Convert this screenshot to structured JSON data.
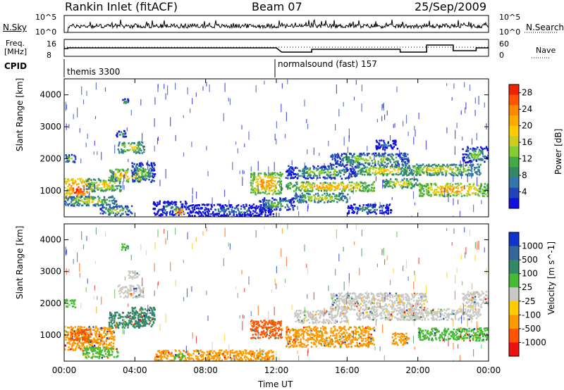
{
  "header": {
    "site": "Rankin Inlet (fitACF)",
    "beam": "Beam 07",
    "date": "25/Sep/2009"
  },
  "top_panels": {
    "nsky_label": "N.Sky",
    "nsky_ticks": [
      "10^5",
      "10^0"
    ],
    "nsearch_label": "N.Search",
    "nsearch_ticks": [
      "10^5",
      "10^0"
    ],
    "freq_label": "Freq.",
    "freq_unit": "[MHz]",
    "freq_ticks": [
      "16",
      "8"
    ],
    "nave_label": "Nave",
    "nave_ticks": [
      "60",
      "0"
    ],
    "cpid_label": "CPID",
    "cpid_segments": [
      {
        "name": "themis 3300",
        "start_hour": 0
      },
      {
        "name": "normalsound (fast) 157",
        "start_hour": 12
      }
    ]
  },
  "chart_data": [
    {
      "type": "heatmap",
      "title": "Power",
      "ylabel": "Slant Range [km]",
      "xlabel": "",
      "x_ticks": [
        "00:00",
        "04:00",
        "08:00",
        "12:00",
        "16:00",
        "20:00",
        "00:00"
      ],
      "x_range_hours": [
        0,
        24
      ],
      "y_ticks": [
        1000,
        2000,
        3000,
        4000
      ],
      "ylim": [
        180,
        4500
      ],
      "colorbar": {
        "label": "Power [dB]",
        "ticks": [
          4,
          8,
          12,
          16,
          20,
          24,
          28
        ],
        "range": [
          0,
          30
        ],
        "colors": [
          "#1111dd",
          "#2244bb",
          "#3377aa",
          "#338866",
          "#44aa44",
          "#88cc33",
          "#cccc22",
          "#ffcc00",
          "#ffaa00",
          "#ff8800",
          "#ff5500",
          "#ee2200"
        ]
      },
      "regions": [
        {
          "t": [
            0.0,
            1.5
          ],
          "r": [
            750,
            1400
          ],
          "level": 27
        },
        {
          "t": [
            0.0,
            3.0
          ],
          "r": [
            550,
            850
          ],
          "level": 16
        },
        {
          "t": [
            1.2,
            3.2
          ],
          "r": [
            1000,
            1400
          ],
          "level": 19
        },
        {
          "t": [
            2.0,
            3.8
          ],
          "r": [
            250,
            550
          ],
          "level": 14
        },
        {
          "t": [
            2.5,
            4.6
          ],
          "r": [
            1300,
            1700
          ],
          "level": 21
        },
        {
          "t": [
            3.0,
            4.5
          ],
          "r": [
            2200,
            2550
          ],
          "level": 17
        },
        {
          "t": [
            3.8,
            5.1
          ],
          "r": [
            1300,
            1900
          ],
          "level": 13
        },
        {
          "t": [
            0.0,
            0.6
          ],
          "r": [
            1900,
            2150
          ],
          "level": 14
        },
        {
          "t": [
            2.9,
            3.5
          ],
          "r": [
            2700,
            2900
          ],
          "level": 11
        },
        {
          "t": [
            3.2,
            3.6
          ],
          "r": [
            3700,
            3900
          ],
          "level": 10
        },
        {
          "t": [
            5.0,
            7.0
          ],
          "r": [
            250,
            700
          ],
          "level": 8
        },
        {
          "t": [
            6.2,
            6.8
          ],
          "r": [
            250,
            450
          ],
          "level": 26
        },
        {
          "t": [
            7.0,
            11.8
          ],
          "r": [
            200,
            600
          ],
          "level": 6
        },
        {
          "t": [
            10.5,
            12.3
          ],
          "r": [
            900,
            1600
          ],
          "level": 22
        },
        {
          "t": [
            11.0,
            13.0
          ],
          "r": [
            400,
            800
          ],
          "level": 12
        },
        {
          "t": [
            12.5,
            17.5
          ],
          "r": [
            1000,
            1300
          ],
          "level": 21
        },
        {
          "t": [
            13.0,
            16.0
          ],
          "r": [
            650,
            950
          ],
          "level": 16
        },
        {
          "t": [
            12.5,
            16.5
          ],
          "r": [
            1400,
            1800
          ],
          "level": 13
        },
        {
          "t": [
            15.0,
            19.5
          ],
          "r": [
            1800,
            2200
          ],
          "level": 14
        },
        {
          "t": [
            16.5,
            20.0
          ],
          "r": [
            1500,
            1800
          ],
          "level": 19
        },
        {
          "t": [
            19.0,
            23.5
          ],
          "r": [
            1500,
            1850
          ],
          "level": 17
        },
        {
          "t": [
            20.0,
            24.0
          ],
          "r": [
            850,
            1250
          ],
          "level": 22
        },
        {
          "t": [
            18.0,
            20.0
          ],
          "r": [
            1100,
            1400
          ],
          "level": 18
        },
        {
          "t": [
            16.0,
            18.5
          ],
          "r": [
            300,
            600
          ],
          "level": 9
        },
        {
          "t": [
            17.5,
            18.8
          ],
          "r": [
            2300,
            2600
          ],
          "level": 6
        },
        {
          "t": [
            22.5,
            24.0
          ],
          "r": [
            1900,
            2400
          ],
          "level": 12
        }
      ]
    },
    {
      "type": "heatmap",
      "title": "Velocity",
      "ylabel": "Slant Range [km]",
      "xlabel": "Time UT",
      "x_ticks": [
        "00:00",
        "04:00",
        "08:00",
        "12:00",
        "16:00",
        "20:00",
        "00:00"
      ],
      "x_range_hours": [
        0,
        24
      ],
      "y_ticks": [
        1000,
        2000,
        3000,
        4000
      ],
      "ylim": [
        180,
        4500
      ],
      "colorbar": {
        "label": "Velocity [m s^-1]",
        "ticks": [
          "1000",
          "500",
          "100",
          "25",
          "-25",
          "-100",
          "-500",
          "-1000"
        ],
        "colors": [
          "#1133cc",
          "#336699",
          "#338866",
          "#44bb33",
          "#c8c8c4",
          "#ffcc00",
          "#ff9900",
          "#ff5500",
          "#ee1111"
        ]
      },
      "regions": [
        {
          "t": [
            0.0,
            2.8
          ],
          "r": [
            550,
            1300
          ],
          "cat": "-100"
        },
        {
          "t": [
            0.3,
            1.5
          ],
          "r": [
            800,
            1200
          ],
          "cat": "-500"
        },
        {
          "t": [
            1.0,
            3.0
          ],
          "r": [
            300,
            650
          ],
          "cat": "100"
        },
        {
          "t": [
            2.5,
            4.6
          ],
          "r": [
            1250,
            1750
          ],
          "cat": "500"
        },
        {
          "t": [
            3.8,
            5.1
          ],
          "r": [
            1300,
            1900
          ],
          "cat": "500"
        },
        {
          "t": [
            3.0,
            4.5
          ],
          "r": [
            2200,
            2600
          ],
          "cat": "25"
        },
        {
          "t": [
            3.6,
            4.2
          ],
          "r": [
            2800,
            3050
          ],
          "cat": "25"
        },
        {
          "t": [
            0.0,
            0.6
          ],
          "r": [
            1900,
            2150
          ],
          "cat": "100"
        },
        {
          "t": [
            3.2,
            3.6
          ],
          "r": [
            3700,
            3900
          ],
          "cat": "100"
        },
        {
          "t": [
            5.0,
            11.8
          ],
          "r": [
            200,
            550
          ],
          "cat": "-100"
        },
        {
          "t": [
            6.2,
            6.8
          ],
          "r": [
            250,
            450
          ],
          "cat": "100"
        },
        {
          "t": [
            10.5,
            12.3
          ],
          "r": [
            900,
            1500
          ],
          "cat": "-500"
        },
        {
          "t": [
            12.5,
            17.5
          ],
          "r": [
            650,
            1300
          ],
          "cat": "-100"
        },
        {
          "t": [
            13.0,
            16.0
          ],
          "r": [
            1400,
            1800
          ],
          "cat": "25"
        },
        {
          "t": [
            15.0,
            20.5
          ],
          "r": [
            1800,
            2350
          ],
          "cat": "25"
        },
        {
          "t": [
            16.5,
            20.0
          ],
          "r": [
            1500,
            1800
          ],
          "cat": "25"
        },
        {
          "t": [
            19.0,
            23.5
          ],
          "r": [
            1500,
            1850
          ],
          "cat": "25"
        },
        {
          "t": [
            20.0,
            24.0
          ],
          "r": [
            850,
            1250
          ],
          "cat": "100"
        },
        {
          "t": [
            18.5,
            19.5
          ],
          "r": [
            700,
            1100
          ],
          "cat": "-100"
        },
        {
          "t": [
            22.5,
            24.0
          ],
          "r": [
            1900,
            2400
          ],
          "cat": "25"
        }
      ]
    }
  ]
}
